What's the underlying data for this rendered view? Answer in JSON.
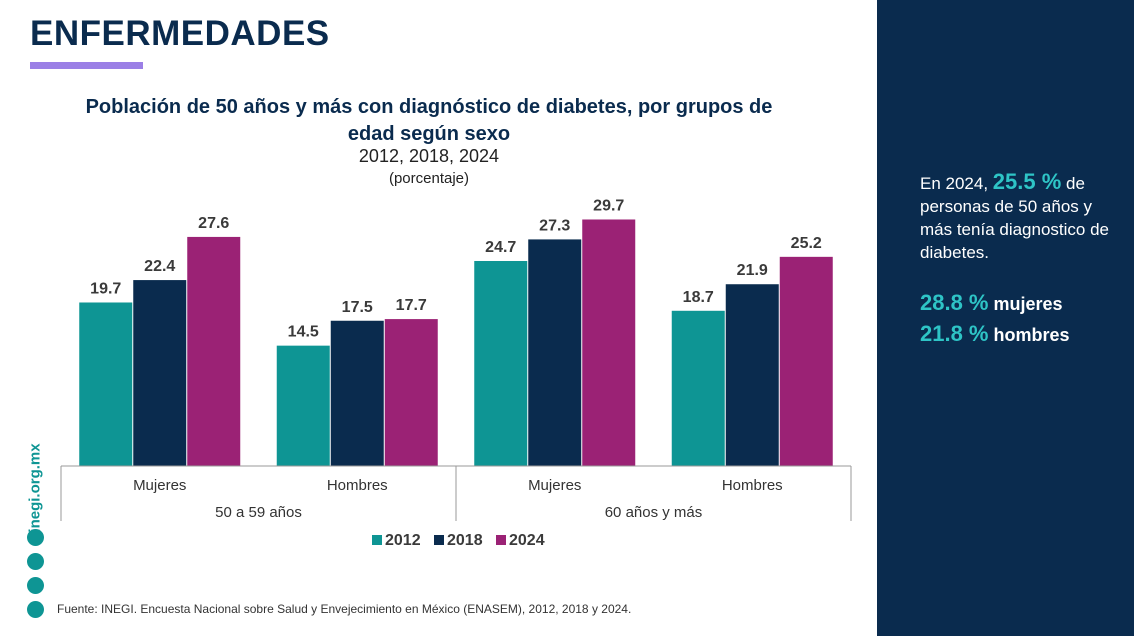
{
  "header": {
    "title": "ENFERMEDADES"
  },
  "chart_data": {
    "type": "bar",
    "title": "Población de 50 años y más con diagnóstico de diabetes, por grupos de edad según sexo",
    "subtitle": "2012, 2018, 2024",
    "unit_label": "(porcentaje)",
    "categories": [
      "Mujeres",
      "Hombres",
      "Mujeres",
      "Hombres"
    ],
    "groups": [
      "50 a 59 años",
      "60 años y más"
    ],
    "series": [
      {
        "name": "2012",
        "color": "#0e9594",
        "values": [
          19.7,
          14.5,
          24.7,
          18.7
        ]
      },
      {
        "name": "2018",
        "color": "#0a2b4e",
        "values": [
          22.4,
          17.5,
          27.3,
          21.9
        ]
      },
      {
        "name": "2024",
        "color": "#9b2275",
        "values": [
          27.6,
          17.7,
          29.7,
          25.2
        ]
      }
    ]
  },
  "side_panel": {
    "intro": "En 2024,",
    "highlight": "25.5 %",
    "text": "de personas de 50 años y más tenía diagnostico de diabetes.",
    "stats": [
      {
        "value": "28.8 %",
        "label": "mujeres"
      },
      {
        "value": "21.8 %",
        "label": "hombres"
      }
    ]
  },
  "footer": {
    "source": "Fuente: INEGI. Encuesta Nacional sobre Salud y Envejecimiento en México (ENASEM), 2012, 2018 y 2024.",
    "site": "inegi.org.mx"
  }
}
